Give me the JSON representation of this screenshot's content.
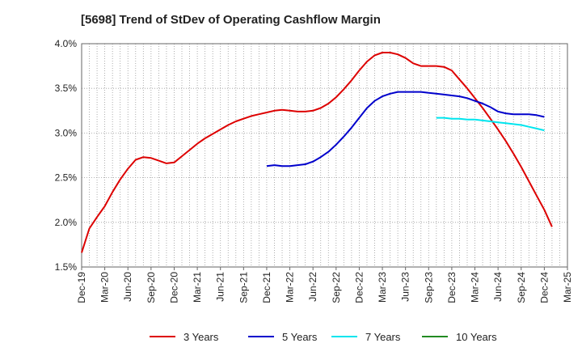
{
  "chart_data": {
    "type": "line",
    "title": "[5698]  Trend of StDev of Operating Cashflow Margin",
    "xlabel": "",
    "ylabel": "",
    "x_tick_labels": [
      "Dec-19",
      "Mar-20",
      "Jun-20",
      "Sep-20",
      "Dec-20",
      "Mar-21",
      "Jun-21",
      "Sep-21",
      "Dec-21",
      "Mar-22",
      "Jun-22",
      "Sep-22",
      "Dec-22",
      "Mar-23",
      "Jun-23",
      "Sep-23",
      "Dec-23",
      "Mar-24",
      "Jun-24",
      "Sep-24",
      "Dec-24",
      "Mar-25"
    ],
    "y_tick_labels": [
      "4.0%",
      "3.5%",
      "3.0%",
      "2.5%",
      "2.0%",
      "1.5%"
    ],
    "ylim": [
      1.5,
      4.0
    ],
    "y_unit": "%",
    "grid": true,
    "legend_position": "bottom",
    "series": [
      {
        "name": "3 Years",
        "color": "#dd0000",
        "points": [
          [
            "Dec-19",
            1.66
          ],
          [
            "Jan-20",
            1.93
          ],
          [
            "Feb-20",
            2.06
          ],
          [
            "Mar-20",
            2.18
          ],
          [
            "Apr-20",
            2.34
          ],
          [
            "May-20",
            2.48
          ],
          [
            "Jun-20",
            2.6
          ],
          [
            "Jul-20",
            2.7
          ],
          [
            "Aug-20",
            2.73
          ],
          [
            "Sep-20",
            2.72
          ],
          [
            "Oct-20",
            2.69
          ],
          [
            "Nov-20",
            2.66
          ],
          [
            "Dec-20",
            2.67
          ],
          [
            "Jan-21",
            2.74
          ],
          [
            "Feb-21",
            2.81
          ],
          [
            "Mar-21",
            2.88
          ],
          [
            "Apr-21",
            2.94
          ],
          [
            "May-21",
            2.99
          ],
          [
            "Jun-21",
            3.04
          ],
          [
            "Jul-21",
            3.09
          ],
          [
            "Aug-21",
            3.13
          ],
          [
            "Sep-21",
            3.16
          ],
          [
            "Oct-21",
            3.19
          ],
          [
            "Nov-21",
            3.21
          ],
          [
            "Dec-21",
            3.23
          ],
          [
            "Jan-22",
            3.25
          ],
          [
            "Feb-22",
            3.26
          ],
          [
            "Mar-22",
            3.25
          ],
          [
            "Apr-22",
            3.24
          ],
          [
            "May-22",
            3.24
          ],
          [
            "Jun-22",
            3.25
          ],
          [
            "Jul-22",
            3.28
          ],
          [
            "Aug-22",
            3.33
          ],
          [
            "Sep-22",
            3.4
          ],
          [
            "Oct-22",
            3.49
          ],
          [
            "Nov-22",
            3.59
          ],
          [
            "Dec-22",
            3.7
          ],
          [
            "Jan-23",
            3.8
          ],
          [
            "Feb-23",
            3.87
          ],
          [
            "Mar-23",
            3.9
          ],
          [
            "Apr-23",
            3.9
          ],
          [
            "May-23",
            3.88
          ],
          [
            "Jun-23",
            3.84
          ],
          [
            "Jul-23",
            3.78
          ],
          [
            "Aug-23",
            3.75
          ],
          [
            "Sep-23",
            3.75
          ],
          [
            "Oct-23",
            3.75
          ],
          [
            "Nov-23",
            3.74
          ],
          [
            "Dec-23",
            3.7
          ],
          [
            "Jan-24",
            3.6
          ],
          [
            "Feb-24",
            3.5
          ],
          [
            "Mar-24",
            3.39
          ],
          [
            "Apr-24",
            3.28
          ],
          [
            "May-24",
            3.16
          ],
          [
            "Jun-24",
            3.04
          ],
          [
            "Jul-24",
            2.91
          ],
          [
            "Aug-24",
            2.77
          ],
          [
            "Sep-24",
            2.62
          ],
          [
            "Oct-24",
            2.46
          ],
          [
            "Nov-24",
            2.3
          ],
          [
            "Dec-24",
            2.14
          ],
          [
            "Jan-25",
            1.95
          ]
        ]
      },
      {
        "name": "5 Years",
        "color": "#0000cc",
        "points": [
          [
            "Dec-21",
            2.63
          ],
          [
            "Jan-22",
            2.64
          ],
          [
            "Feb-22",
            2.63
          ],
          [
            "Mar-22",
            2.63
          ],
          [
            "Apr-22",
            2.64
          ],
          [
            "May-22",
            2.65
          ],
          [
            "Jun-22",
            2.68
          ],
          [
            "Jul-22",
            2.73
          ],
          [
            "Aug-22",
            2.79
          ],
          [
            "Sep-22",
            2.87
          ],
          [
            "Oct-22",
            2.96
          ],
          [
            "Nov-22",
            3.06
          ],
          [
            "Dec-22",
            3.17
          ],
          [
            "Jan-23",
            3.28
          ],
          [
            "Feb-23",
            3.36
          ],
          [
            "Mar-23",
            3.41
          ],
          [
            "Apr-23",
            3.44
          ],
          [
            "May-23",
            3.46
          ],
          [
            "Jun-23",
            3.46
          ],
          [
            "Jul-23",
            3.46
          ],
          [
            "Aug-23",
            3.46
          ],
          [
            "Sep-23",
            3.45
          ],
          [
            "Oct-23",
            3.44
          ],
          [
            "Nov-23",
            3.43
          ],
          [
            "Dec-23",
            3.42
          ],
          [
            "Jan-24",
            3.41
          ],
          [
            "Feb-24",
            3.39
          ],
          [
            "Mar-24",
            3.36
          ],
          [
            "Apr-24",
            3.33
          ],
          [
            "May-24",
            3.29
          ],
          [
            "Jun-24",
            3.24
          ],
          [
            "Jul-24",
            3.22
          ],
          [
            "Aug-24",
            3.21
          ],
          [
            "Sep-24",
            3.21
          ],
          [
            "Oct-24",
            3.21
          ],
          [
            "Nov-24",
            3.2
          ],
          [
            "Dec-24",
            3.18
          ]
        ]
      },
      {
        "name": "7 Years",
        "color": "#00e5ee",
        "points": [
          [
            "Oct-23",
            3.17
          ],
          [
            "Nov-23",
            3.17
          ],
          [
            "Dec-23",
            3.16
          ],
          [
            "Jan-24",
            3.16
          ],
          [
            "Feb-24",
            3.15
          ],
          [
            "Mar-24",
            3.15
          ],
          [
            "Apr-24",
            3.14
          ],
          [
            "May-24",
            3.13
          ],
          [
            "Jun-24",
            3.12
          ],
          [
            "Jul-24",
            3.11
          ],
          [
            "Aug-24",
            3.1
          ],
          [
            "Sep-24",
            3.09
          ],
          [
            "Oct-24",
            3.07
          ],
          [
            "Nov-24",
            3.05
          ],
          [
            "Dec-24",
            3.03
          ]
        ]
      },
      {
        "name": "10 Years",
        "color": "#228b22",
        "points": []
      }
    ]
  }
}
